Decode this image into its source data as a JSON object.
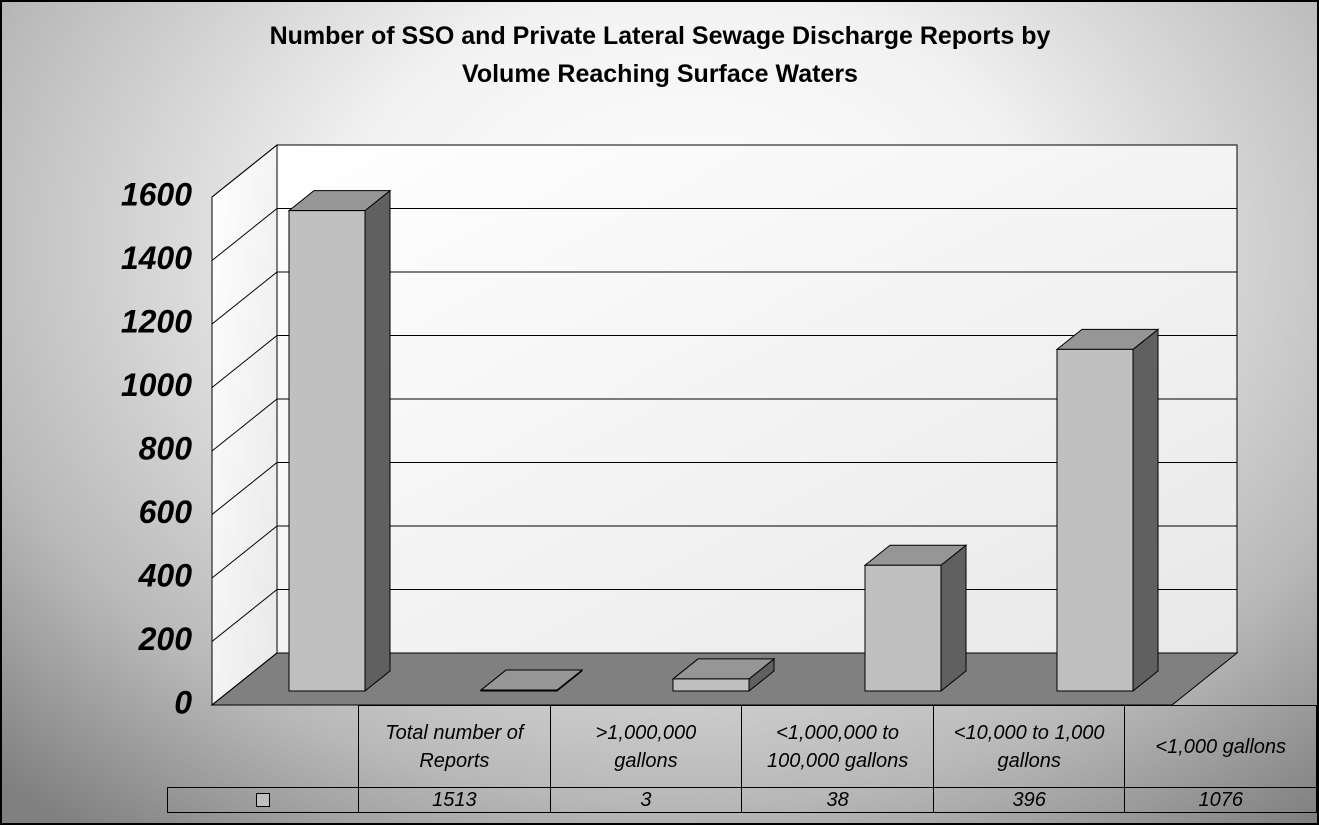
{
  "chart_data": {
    "type": "bar3d",
    "title": [
      "Number of SSO and Private Lateral Sewage Discharge Reports by",
      "Volume Reaching Surface Waters"
    ],
    "categories": [
      "Total number of Reports",
      ">1,000,000 gallons",
      "<1,000,000 to 100,000 gallons",
      "<10,000 to 1,000 gallons",
      "<1,000 gallons"
    ],
    "values": [
      1513,
      3,
      38,
      396,
      1076
    ],
    "color": "#c0c0c0",
    "ylim": [
      0,
      1600
    ],
    "yticks": [
      0,
      200,
      400,
      600,
      800,
      1000,
      1200,
      1400,
      1600
    ],
    "grid": true
  }
}
